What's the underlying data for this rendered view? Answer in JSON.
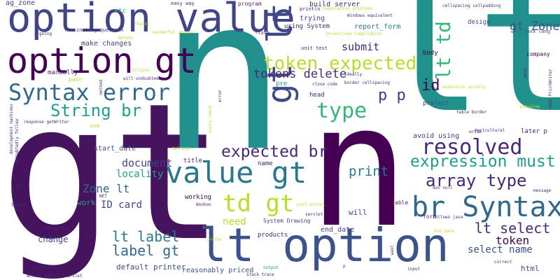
{
  "words": [
    {
      "id": "gt",
      "text": "gt"
    },
    {
      "id": "n_big",
      "text": "n"
    },
    {
      "id": "lt",
      "text": "lt"
    },
    {
      "id": "n_mid",
      "text": "n"
    },
    {
      "id": "lt_option",
      "text": "lt option"
    },
    {
      "id": "option_value",
      "text": "option value"
    },
    {
      "id": "option_gt",
      "text": "option gt"
    },
    {
      "id": "syntax_error",
      "text": "Syntax error"
    },
    {
      "id": "value_gt",
      "text": "value gt"
    },
    {
      "id": "gt_lt",
      "text": "gt lt"
    },
    {
      "id": "br_syntax",
      "text": "br Syntax"
    },
    {
      "id": "token_expected",
      "text": "token expected"
    },
    {
      "id": "resolved",
      "text": "resolved"
    },
    {
      "id": "expression_must",
      "text": "expression must"
    },
    {
      "id": "type",
      "text": "type"
    },
    {
      "id": "string_br",
      "text": "String br"
    },
    {
      "id": "expected_br",
      "text": "expected br"
    },
    {
      "id": "td_gt",
      "text": "td gt"
    },
    {
      "id": "array_type",
      "text": "array type"
    },
    {
      "id": "lt_select",
      "text": "lt select"
    },
    {
      "id": "lt_td",
      "text": "lt td"
    },
    {
      "id": "label_gt",
      "text": "label gt"
    },
    {
      "id": "lt_label",
      "text": "lt label"
    },
    {
      "id": "p_p",
      "text": "p p"
    },
    {
      "id": "tokens_delete",
      "text": "tokens delete"
    },
    {
      "id": "gt_zone",
      "text": "gt Zone"
    },
    {
      "id": "zone_lt",
      "text": "Zone lt"
    },
    {
      "id": "print",
      "text": "print"
    },
    {
      "id": "submit",
      "text": "submit"
    },
    {
      "id": "document",
      "text": "document"
    },
    {
      "id": "token",
      "text": "token"
    },
    {
      "id": "id_card",
      "text": "ID card"
    },
    {
      "id": "select_name",
      "text": "select name"
    },
    {
      "id": "id",
      "text": "id"
    },
    {
      "id": "need",
      "text": "need"
    },
    {
      "id": "locality",
      "text": "locality"
    },
    {
      "id": "ag_zone",
      "text": "ag_zone"
    },
    {
      "id": "etc",
      "text": "etc"
    },
    {
      "id": "build_server",
      "text": "build server"
    },
    {
      "id": "using_system",
      "text": "using System"
    },
    {
      "id": "report_form",
      "text": "report_form"
    },
    {
      "id": "make_changes",
      "text": "make changes"
    },
    {
      "id": "start_date",
      "text": "start_date"
    },
    {
      "id": "end_date",
      "text": "end_date"
    },
    {
      "id": "change",
      "text": "change"
    },
    {
      "id": "default_printer",
      "text": "default printer"
    },
    {
      "id": "reasonably_priced",
      "text": "reasonably priced"
    },
    {
      "id": "manually",
      "text": "manually"
    },
    {
      "id": "system_drawing",
      "text": "System Drawing"
    },
    {
      "id": "products",
      "text": "products"
    },
    {
      "id": "trying",
      "text": "trying"
    },
    {
      "id": "working",
      "text": "working"
    },
    {
      "id": "avoid_using",
      "text": "avoid using"
    },
    {
      "id": "title",
      "text": "title"
    },
    {
      "id": "name",
      "text": "name"
    },
    {
      "id": "will",
      "text": "will"
    },
    {
      "id": "work",
      "text": "work"
    },
    {
      "id": "html",
      "text": "html"
    },
    {
      "id": "head",
      "text": "head"
    },
    {
      "id": "body",
      "text": "body"
    },
    {
      "id": "pre",
      "text": "pre"
    },
    {
      "id": "project",
      "text": "project"
    },
    {
      "id": "design",
      "text": "design"
    },
    {
      "id": "java_lang",
      "text": "java lang"
    },
    {
      "id": "company",
      "text": "company"
    },
    {
      "id": "program",
      "text": "program"
    },
    {
      "id": "easy_way",
      "text": "easy way"
    },
    {
      "id": "println",
      "text": "println"
    },
    {
      "id": "compilation_problems",
      "text": "compilation problems"
    },
    {
      "id": "windows_equivalent",
      "text": "Windows equivalent"
    },
    {
      "id": "unresolved_compilation",
      "text": "Unresolved compilation"
    },
    {
      "id": "cellspacing_cellpadding",
      "text": "cellspacing cellpadding"
    },
    {
      "id": "fascinating_question",
      "text": "fascinating question"
    },
    {
      "id": "wonderful_answers",
      "text": "wonderful answers"
    },
    {
      "id": "thanks",
      "text": "Thanks"
    },
    {
      "id": "going",
      "text": "going"
    },
    {
      "id": "delete_small",
      "text": "delete"
    },
    {
      "id": "flush",
      "text": "flush"
    },
    {
      "id": "unit_test",
      "text": "unit test"
    },
    {
      "id": "ideally",
      "text": "Ideally"
    },
    {
      "id": "border_cellspacing",
      "text": "border cellspacing"
    },
    {
      "id": "close_code",
      "text": "close code"
    },
    {
      "id": "eclipse",
      "text": "Eclipse"
    },
    {
      "id": "pain",
      "text": "pain"
    },
    {
      "id": "will_undoubtedly",
      "text": "will undoubtedly"
    },
    {
      "id": "method",
      "text": "method"
    },
    {
      "id": "response_getwriter",
      "text": "response getWriter"
    },
    {
      "id": "use",
      "text": "use"
    },
    {
      "id": "believe",
      "text": "believe"
    },
    {
      "id": "table_border",
      "text": "table border"
    },
    {
      "id": "agricultural",
      "text": "Agricultural"
    },
    {
      "id": "write",
      "text": "write"
    },
    {
      "id": "later_p",
      "text": "later p"
    },
    {
      "id": "guessing",
      "text": "guessing"
    },
    {
      "id": "expensive_quickly",
      "text": "expensive quickly"
    },
    {
      "id": "send",
      "text": "send"
    },
    {
      "id": "code_printwriter",
      "text": "code PrintWriter"
    },
    {
      "id": "tr",
      "text": "tr"
    },
    {
      "id": "table",
      "text": "table"
    },
    {
      "id": "net",
      "text": "NET"
    },
    {
      "id": "woohoo",
      "text": "Woohoo"
    },
    {
      "id": "post_action",
      "text": "post action"
    },
    {
      "id": "servlet",
      "text": "servlet"
    },
    {
      "id": "able",
      "text": "able"
    },
    {
      "id": "form",
      "text": "form"
    },
    {
      "id": "dev_null",
      "text": "dev null"
    },
    {
      "id": "message",
      "text": "message"
    },
    {
      "id": "follows_java",
      "text": "follows java"
    },
    {
      "id": "end_date_label",
      "text": "End Date"
    },
    {
      "id": "correct",
      "text": "correct"
    },
    {
      "id": "method_post",
      "text": "method post"
    },
    {
      "id": "prefer",
      "text": "prefer"
    },
    {
      "id": "start_date_label",
      "text": "Start Date"
    },
    {
      "id": "action_agreportservlet",
      "text": "action AgReportServlet"
    },
    {
      "id": "stack_trace",
      "text": "stack trace"
    },
    {
      "id": "output",
      "text": "output"
    },
    {
      "id": "input",
      "text": "input"
    },
    {
      "id": "want",
      "text": "want"
    },
    {
      "id": "error",
      "text": "error"
    },
    {
      "id": "every_check",
      "text": "every check"
    },
    {
      "id": "development_machines",
      "text": "development machines"
    },
    {
      "id": "undoubtedly_follow",
      "text": "undoubtedly follow"
    },
    {
      "id": "p_small",
      "text": "p"
    }
  ]
}
